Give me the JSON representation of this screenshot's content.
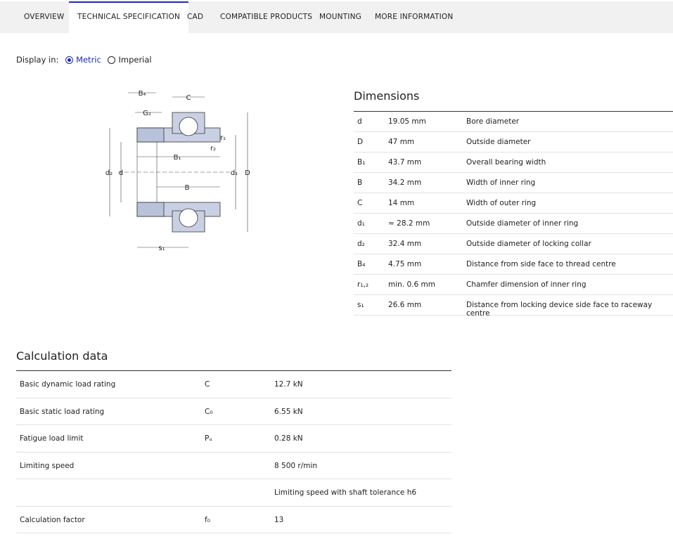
{
  "tabs": [
    "OVERVIEW",
    "TECHNICAL SPECIFICATION",
    "CAD",
    "COMPATIBLE PRODUCTS",
    "MOUNTING",
    "MORE INFORMATION"
  ],
  "display": {
    "label": "Display in:",
    "options": [
      "Metric",
      "Imperial"
    ]
  },
  "diagram": {
    "labels": [
      "B₄",
      "G₂",
      "C",
      "B₁",
      "r₂",
      "r₁",
      "d₂",
      "d",
      "d₁",
      "D",
      "B",
      "s₁"
    ]
  },
  "dimensions": {
    "title": "Dimensions",
    "rows": [
      {
        "symbol": "d",
        "value": "19.05 mm",
        "description": "Bore diameter"
      },
      {
        "symbol": "D",
        "value": "47 mm",
        "description": "Outside diameter"
      },
      {
        "symbol": "B₁",
        "value": "43.7 mm",
        "description": "Overall bearing width"
      },
      {
        "symbol": "B",
        "value": "34.2 mm",
        "description": "Width of inner ring"
      },
      {
        "symbol": "C",
        "value": "14 mm",
        "description": "Width of outer ring"
      },
      {
        "symbol": "d₁",
        "value": "≈ 28.2 mm",
        "description": "Outside diameter of inner ring"
      },
      {
        "symbol": "d₂",
        "value": "32.4 mm",
        "description": "Outside diameter of locking collar"
      },
      {
        "symbol": "B₄",
        "value": "4.75 mm",
        "description": "Distance from side face to thread centre"
      },
      {
        "symbol": "r₁,₂",
        "value": "min. 0.6 mm",
        "description": "Chamfer dimension of inner ring"
      },
      {
        "symbol": "s₁",
        "value": "26.6 mm",
        "description": "Distance from locking device side face to raceway centre"
      }
    ]
  },
  "calculation": {
    "title": "Calculation data",
    "rows": [
      {
        "name": "Basic dynamic load rating",
        "symbol": "C",
        "value": "12.7 kN"
      },
      {
        "name": "Basic static load rating",
        "symbol": "C₀",
        "value": "6.55 kN"
      },
      {
        "name": "Fatigue load limit",
        "symbol": "Pᵤ",
        "value": "0.28 kN"
      },
      {
        "name": "Limiting speed",
        "value": "8 500 r/min"
      },
      {
        "value": "Limiting speed with shaft tolerance h6"
      },
      {
        "name": "Calculation factor",
        "symbol": "f₀",
        "value": "13"
      }
    ]
  }
}
